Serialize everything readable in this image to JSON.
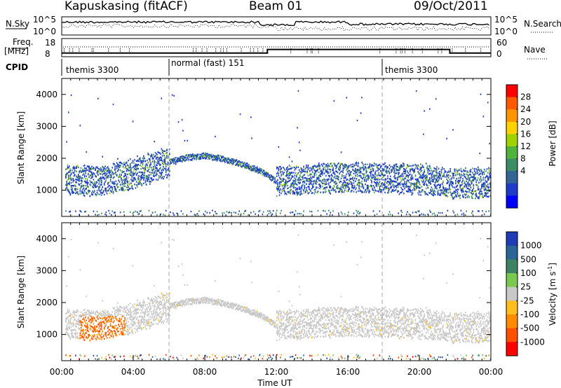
{
  "header": {
    "radar": "Kapuskasing (fitACF)",
    "beam": "Beam 01",
    "date": "09/Oct/2011"
  },
  "top_panels": {
    "nsky_label": "N.Sky",
    "nsky_ticks": [
      "10^5",
      "10^0"
    ],
    "nsearch_label": "N.Search",
    "nsearch_ticks": [
      "10^5",
      "10^0"
    ],
    "freq_label": "Freq.",
    "freq_unit": "[MHz]",
    "freq_ticks": [
      "18",
      "8"
    ],
    "nave_label": "Nave",
    "nave_ticks": [
      "60",
      "0"
    ],
    "cpid_label": "CPID",
    "cpid_segments": [
      {
        "label": "themis 3300",
        "start": 0,
        "end": 6
      },
      {
        "label": "normal (fast) 151",
        "start": 6,
        "end": 18
      },
      {
        "label": "themis 3300",
        "start": 18,
        "end": 24
      }
    ]
  },
  "axes": {
    "ylabel": "Slant Range [km]",
    "yticks": [
      "4000",
      "3000",
      "2000",
      "1000"
    ],
    "xlabel": "Time UT",
    "xticks": [
      "00:00",
      "04:00",
      "08:00",
      "12:00",
      "16:00",
      "20:00",
      "00:00"
    ]
  },
  "power_scale": {
    "label": "Power [dB]",
    "ticks": [
      "28",
      "24",
      "20",
      "16",
      "12",
      "8",
      "4"
    ],
    "colors": [
      "#ff0000",
      "#ff5a00",
      "#ff9600",
      "#ffd200",
      "#a0d200",
      "#50b43c",
      "#3c8c64",
      "#326496",
      "#1e3cc8",
      "#0000ff"
    ]
  },
  "velocity_scale": {
    "label": "Velocity [m s",
    "label_sup": "-1",
    "label_end": "]",
    "ticks": [
      "1000",
      "500",
      "100",
      "25",
      "-25",
      "-100",
      "-500",
      "-1000"
    ],
    "colors": [
      "#1e3cb4",
      "#2d6496",
      "#3c8264",
      "#7ac850",
      "#c8c8c8",
      "#ffbe1e",
      "#ff8c00",
      "#ff5000",
      "#ff0000"
    ]
  },
  "chart_data": {
    "type": "heatmap",
    "x_range_hours": [
      0,
      24
    ],
    "y_range_km": [
      180,
      4500
    ],
    "grid": false,
    "band_center_km": [
      [
        0,
        1350
      ],
      [
        2,
        1300
      ],
      [
        4,
        1500
      ],
      [
        6,
        1900
      ],
      [
        7,
        2050
      ],
      [
        8,
        2100
      ],
      [
        9,
        2000
      ],
      [
        10,
        1850
      ],
      [
        11,
        1650
      ],
      [
        12,
        1300
      ],
      [
        14,
        1350
      ],
      [
        16,
        1400
      ],
      [
        18,
        1380
      ],
      [
        20,
        1350
      ],
      [
        22,
        1200
      ],
      [
        24,
        1250
      ]
    ],
    "power_band_dB": [
      4,
      20
    ],
    "velocity_band_ms": [
      -25,
      25
    ],
    "velocity_patch_ms": {
      "range_km": [
        800,
        1600
      ],
      "hours": [
        1,
        3.5
      ],
      "value": -500
    },
    "nsky_level": "10^5",
    "freq_MHz": [
      [
        0,
        10
      ],
      [
        11.5,
        10
      ],
      [
        11.5,
        12
      ],
      [
        21.7,
        12
      ],
      [
        21.7,
        10
      ],
      [
        24,
        10
      ]
    ],
    "nave_level": 40
  }
}
